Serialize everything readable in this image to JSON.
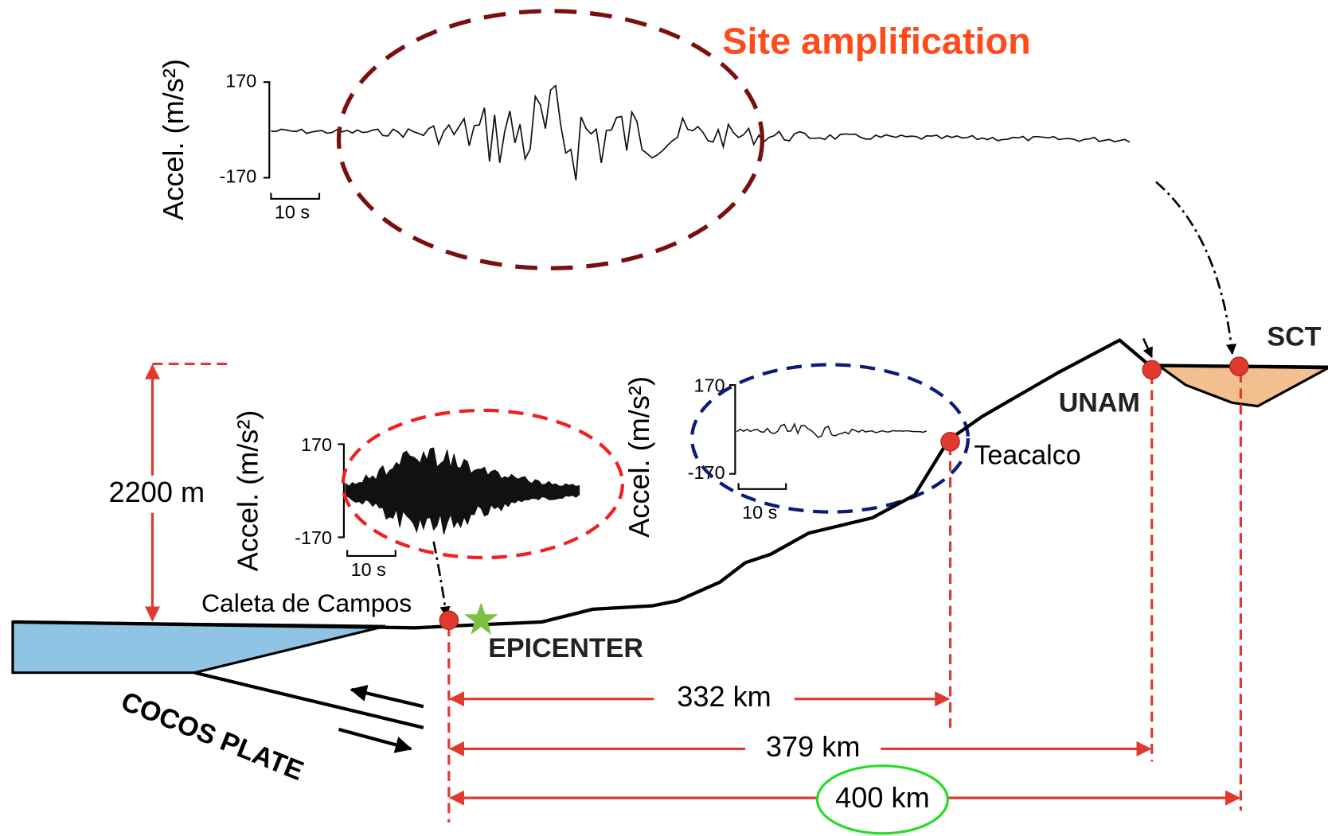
{
  "title": "Site amplification",
  "seismograms": [
    {
      "y_label": "Accel. (m/s²)",
      "y_max": "170",
      "y_min": "-170",
      "time_scale": "10 s"
    },
    {
      "y_label": "Accel. (m/s²)",
      "y_max": "170",
      "y_min": "-170",
      "time_scale": "10 s"
    },
    {
      "y_label": "Accel. (m/s²)",
      "y_max": "170",
      "y_min": "-170",
      "time_scale": "10 s"
    }
  ],
  "height": "2200 m",
  "stations": {
    "caleta": "Caleta de Campos",
    "teacalco": "Teacalco",
    "unam": "UNAM",
    "sct": "SCT"
  },
  "epicenter": "EPICENTER",
  "plate": "COCOS PLATE",
  "distances": [
    "332 km",
    "379 km",
    "400 km"
  ]
}
